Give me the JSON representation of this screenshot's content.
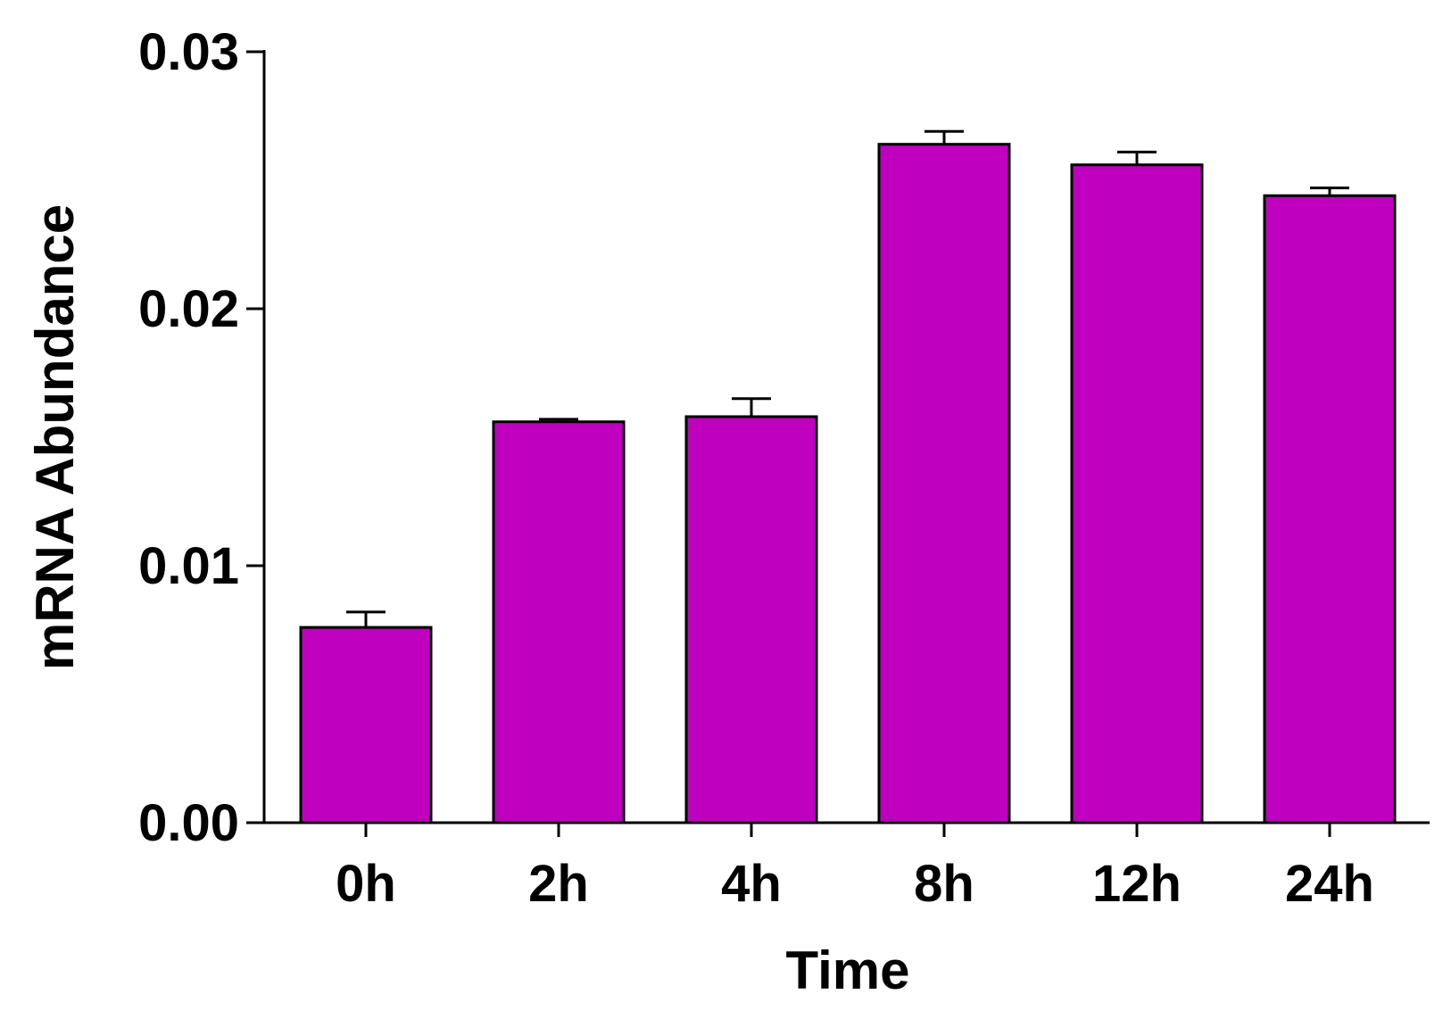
{
  "chart_data": {
    "type": "bar",
    "title": "",
    "xlabel": "Time",
    "ylabel": "mRNA Abundance",
    "categories": [
      "0h",
      "2h",
      "4h",
      "8h",
      "12h",
      "24h"
    ],
    "values": [
      0.0076,
      0.0156,
      0.0158,
      0.0264,
      0.0256,
      0.0244
    ],
    "errors": [
      0.0006,
      0.0001,
      0.0007,
      0.0005,
      0.0005,
      0.0003
    ],
    "ylim": [
      0,
      0.03
    ],
    "yticks": [
      0,
      0.01,
      0.02,
      0.03
    ],
    "ytick_labels": [
      "0.00",
      "0.01",
      "0.02",
      "0.03"
    ],
    "grid": false,
    "bar_color": "#bf00bf"
  }
}
